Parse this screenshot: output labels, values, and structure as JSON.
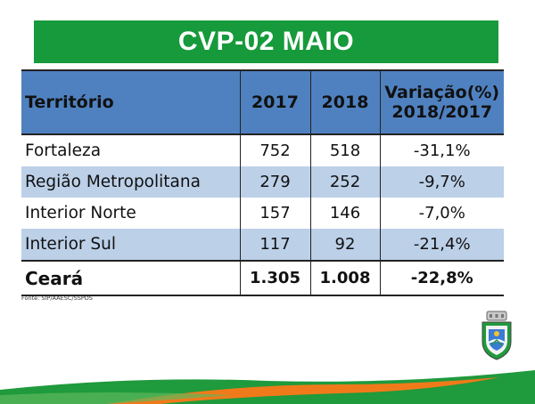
{
  "title": "CVP-02 MAIO",
  "table": {
    "headers": [
      "Território",
      "2017",
      "2018",
      "Variação(%)\n2018/2017"
    ],
    "rows": [
      [
        "Fortaleza",
        "752",
        "518",
        "-31,1%"
      ],
      [
        "Região Metropolitana",
        "279",
        "252",
        "-9,7%"
      ],
      [
        "Interior Norte",
        "157",
        "146",
        "-7,0%"
      ],
      [
        "Interior Sul",
        "117",
        "92",
        "-21,4%"
      ]
    ],
    "total": [
      "Ceará",
      "1.305",
      "1.008",
      "-22,8%"
    ]
  },
  "source": "Fonte: SIP/AAESC/SSPDS",
  "colors": {
    "title_bg": "#169a3b",
    "header_bg": "#4f81c0",
    "row_alt_bg": "#bcd0e8",
    "wave_green": "#1f9a3c",
    "wave_orange": "#f07a1a"
  }
}
